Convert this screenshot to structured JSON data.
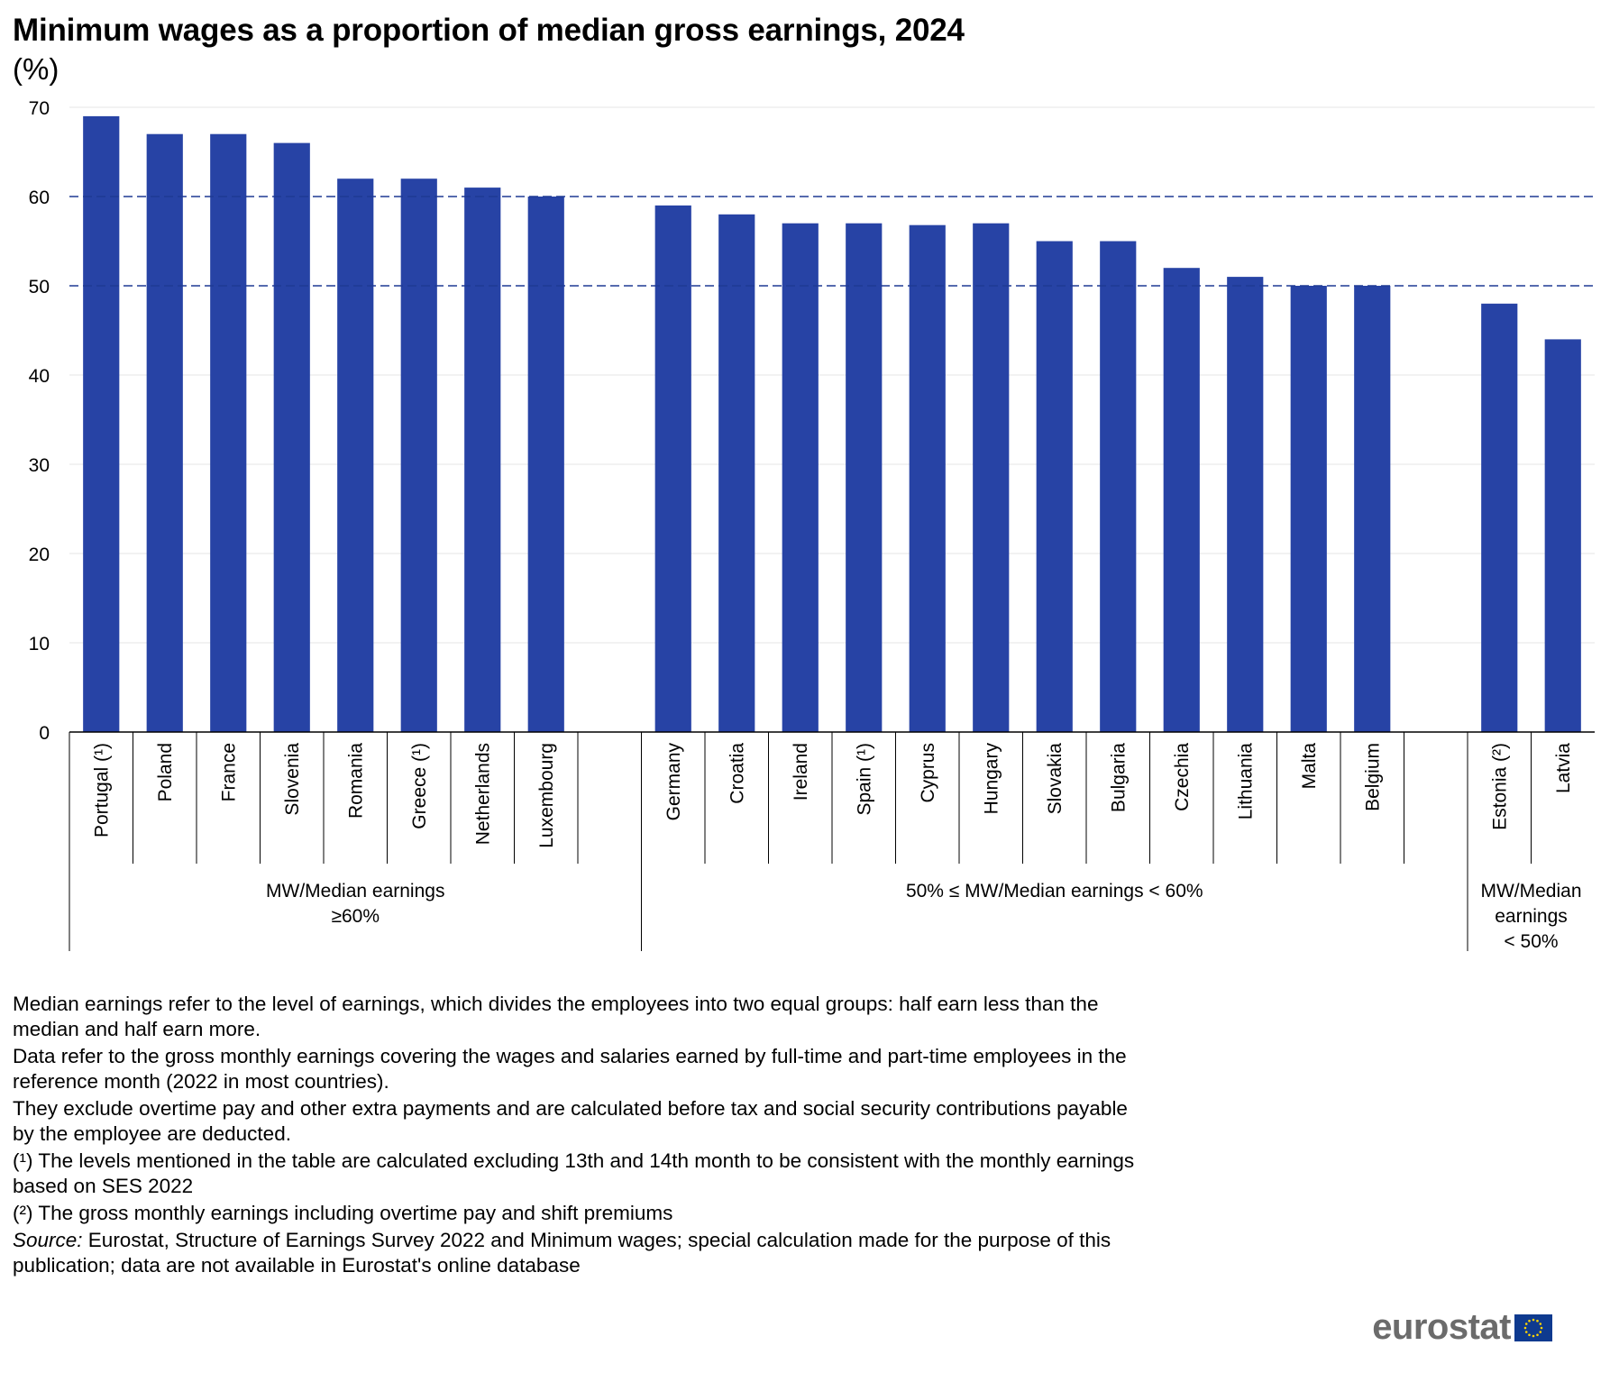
{
  "title": "Minimum wages as a proportion of median gross earnings, 2024",
  "subtitle": "(%)",
  "colors": {
    "bar": "#2743a5",
    "reference_line": "#1f3a93",
    "grid": "#e6e6e6",
    "axis": "#000000"
  },
  "chart_data": {
    "type": "bar",
    "title": "Minimum wages as a proportion of median gross earnings, 2024",
    "ylabel": "(%)",
    "ylim": [
      0,
      70
    ],
    "yticks": [
      0,
      10,
      20,
      30,
      40,
      50,
      60,
      70
    ],
    "reference_lines": [
      60,
      50
    ],
    "categories": [
      "Portugal (¹)",
      "Poland",
      "France",
      "Slovenia",
      "Romania",
      "Greece (¹)",
      "Netherlands",
      "Luxembourg",
      "",
      "Germany",
      "Croatia",
      "Ireland",
      "Spain (¹)",
      "Cyprus",
      "Hungary",
      "Slovakia",
      "Bulgaria",
      "Czechia",
      "Lithuania",
      "Malta",
      "Belgium",
      "",
      "Estonia (²)",
      "Latvia"
    ],
    "values": [
      69,
      67,
      67,
      66,
      62,
      62,
      61,
      60,
      null,
      59,
      58,
      57,
      57,
      56.8,
      57,
      55,
      55,
      52,
      51,
      50,
      50,
      null,
      48,
      44
    ],
    "groups": [
      {
        "label": [
          "MW/Median earnings",
          "≥60%"
        ],
        "start": 0,
        "end": 8
      },
      {
        "label": [
          "50% ≤ MW/Median earnings < 60%"
        ],
        "start": 9,
        "end": 21
      },
      {
        "label": [
          "MW/Median",
          "earnings",
          "< 50%"
        ],
        "start": 22,
        "end": 23
      }
    ]
  },
  "notes": [
    "Median earnings refer to the level of earnings, which divides the employees into two equal groups: half earn less than the median and half earn more.",
    "Data refer to the gross monthly earnings covering the wages and salaries earned by full-time and part-time employees in the reference month (2022 in most countries).",
    "They exclude overtime pay and other extra payments and are calculated before tax and social security contributions payable by the employee are deducted.",
    "(¹) The levels mentioned in the table are calculated excluding 13th and 14th month to be consistent with the monthly earnings based on SES 2022",
    "(²) The gross monthly earnings  including overtime pay and shift premiums"
  ],
  "source": {
    "label": "Source:",
    "text": " Eurostat, Structure of Earnings Survey 2022 and Minimum wages; special calculation made for the purpose of this publication; data are not available in Eurostat's online database"
  },
  "logo": {
    "text": "eurostat",
    "icon": "eu-flag-icon"
  }
}
